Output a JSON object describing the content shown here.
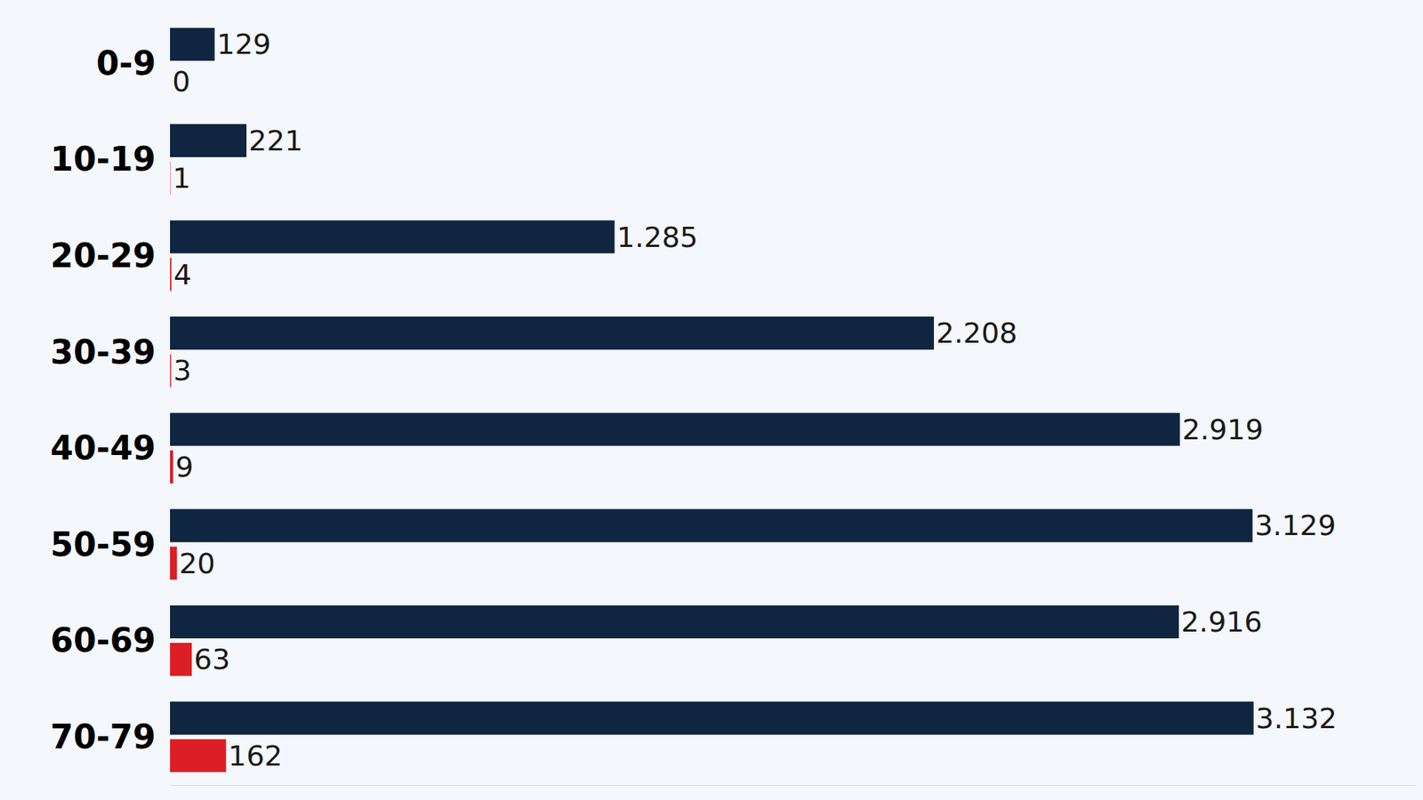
{
  "chart_data": {
    "type": "bar",
    "orientation": "horizontal",
    "categories": [
      "0-9",
      "10-19",
      "20-29",
      "30-39",
      "40-49",
      "50-59",
      "60-69",
      "70-79"
    ],
    "series": [
      {
        "color": "#0f2540",
        "values": [
          129,
          221,
          1285,
          2208,
          2919,
          3129,
          2916,
          3132
        ],
        "value_labels": [
          "129",
          "221",
          "1.285",
          "2.208",
          "2.919",
          "3.129",
          "2.916",
          "3.132"
        ]
      },
      {
        "color": "#dc1f26",
        "values": [
          0,
          1,
          4,
          3,
          9,
          20,
          63,
          162
        ]
      }
    ],
    "xlim": [
      0,
      3600
    ],
    "xticks": [],
    "grid": false,
    "data_labels": true,
    "tick_labels": "y"
  }
}
